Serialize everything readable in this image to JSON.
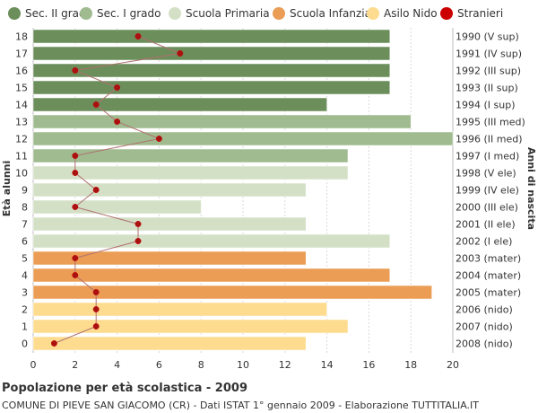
{
  "chart_data": {
    "type": "bar",
    "orientation": "horizontal",
    "xlabel": "",
    "ylabel": "Età alunni",
    "y2label": "Anni di nascita",
    "xlim": [
      0,
      20
    ],
    "xticks": [
      0,
      2,
      4,
      6,
      8,
      10,
      12,
      14,
      16,
      18,
      20
    ],
    "grid": true,
    "legend_position": "top",
    "legend": [
      {
        "name": "Sec. II grado",
        "color": "#6b8e5a"
      },
      {
        "name": "Sec. I grado",
        "color": "#9fbb8f"
      },
      {
        "name": "Scuola Primaria",
        "color": "#d4e0c6"
      },
      {
        "name": "Scuola Infanzia",
        "color": "#eb9d55"
      },
      {
        "name": "Asilo Nido",
        "color": "#fedc8f"
      },
      {
        "name": "Stranieri",
        "color": "#cc0000"
      }
    ],
    "rows": [
      {
        "age": "18",
        "birth": "1990 (V sup)",
        "value": 17,
        "stranieri": 5,
        "group": 0
      },
      {
        "age": "17",
        "birth": "1991 (IV sup)",
        "value": 17,
        "stranieri": 7,
        "group": 0
      },
      {
        "age": "16",
        "birth": "1992 (III sup)",
        "value": 17,
        "stranieri": 2,
        "group": 0
      },
      {
        "age": "15",
        "birth": "1993 (II sup)",
        "value": 17,
        "stranieri": 4,
        "group": 0
      },
      {
        "age": "14",
        "birth": "1994 (I sup)",
        "value": 14,
        "stranieri": 3,
        "group": 0
      },
      {
        "age": "13",
        "birth": "1995 (III med)",
        "value": 18,
        "stranieri": 4,
        "group": 1
      },
      {
        "age": "12",
        "birth": "1996 (II med)",
        "value": 20,
        "stranieri": 6,
        "group": 1
      },
      {
        "age": "11",
        "birth": "1997 (I med)",
        "value": 15,
        "stranieri": 2,
        "group": 1
      },
      {
        "age": "10",
        "birth": "1998 (V ele)",
        "value": 15,
        "stranieri": 2,
        "group": 2
      },
      {
        "age": "9",
        "birth": "1999 (IV ele)",
        "value": 13,
        "stranieri": 3,
        "group": 2
      },
      {
        "age": "8",
        "birth": "2000 (III ele)",
        "value": 8,
        "stranieri": 2,
        "group": 2
      },
      {
        "age": "7",
        "birth": "2001 (II ele)",
        "value": 13,
        "stranieri": 5,
        "group": 2
      },
      {
        "age": "6",
        "birth": "2002 (I ele)",
        "value": 17,
        "stranieri": 5,
        "group": 2
      },
      {
        "age": "5",
        "birth": "2003 (mater)",
        "value": 13,
        "stranieri": 2,
        "group": 3
      },
      {
        "age": "4",
        "birth": "2004 (mater)",
        "value": 17,
        "stranieri": 2,
        "group": 3
      },
      {
        "age": "3",
        "birth": "2005 (mater)",
        "value": 19,
        "stranieri": 3,
        "group": 3
      },
      {
        "age": "2",
        "birth": "2006 (nido)",
        "value": 14,
        "stranieri": 3,
        "group": 4
      },
      {
        "age": "1",
        "birth": "2007 (nido)",
        "value": 15,
        "stranieri": 3,
        "group": 4
      },
      {
        "age": "0",
        "birth": "2008 (nido)",
        "value": 13,
        "stranieri": 1,
        "group": 4
      }
    ],
    "stranieri_line_color": "#b07070"
  },
  "footer": {
    "title": "Popolazione per età scolastica - 2009",
    "subtitle": "COMUNE DI PIEVE SAN GIACOMO (CR) - Dati ISTAT 1° gennaio 2009 - Elaborazione TUTTITALIA.IT"
  }
}
